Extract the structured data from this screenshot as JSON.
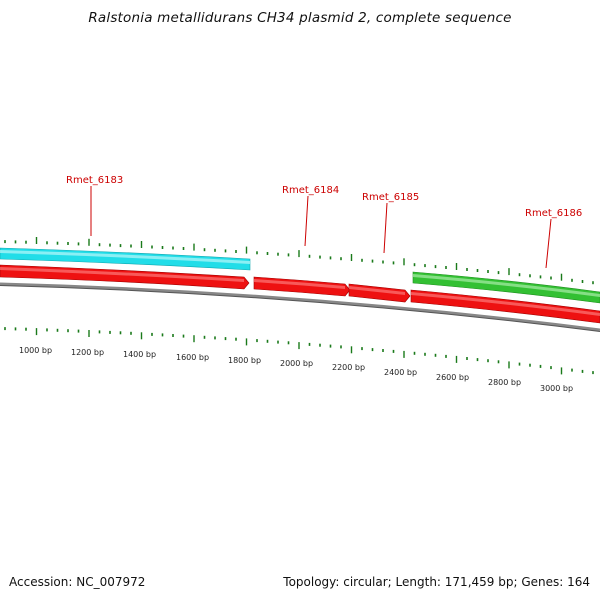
{
  "title": "Ralstonia metallidurans CH34 plasmid 2, complete sequence",
  "footer": {
    "accession": "Accession: NC_007972",
    "summary": "Topology: circular; Length: 171,459 bp; Genes: 164"
  },
  "gene_labels": [
    "Rmet_6183",
    "Rmet_6184",
    "Rmet_6185",
    "Rmet_6186"
  ],
  "bp_labels": [
    "1000 bp",
    "1200 bp",
    "1400 bp",
    "1600 bp",
    "1800 bp",
    "2000 bp",
    "2200 bp",
    "2400 bp",
    "2600 bp",
    "2800 bp",
    "3000 bp"
  ],
  "colors": {
    "forward_cyan": "#22dde8",
    "forward_green": "#33c033",
    "reverse_red": "#ee1111",
    "backbone": "#888888",
    "tick": "#1a7a1a",
    "label_red": "#cc0000"
  }
}
